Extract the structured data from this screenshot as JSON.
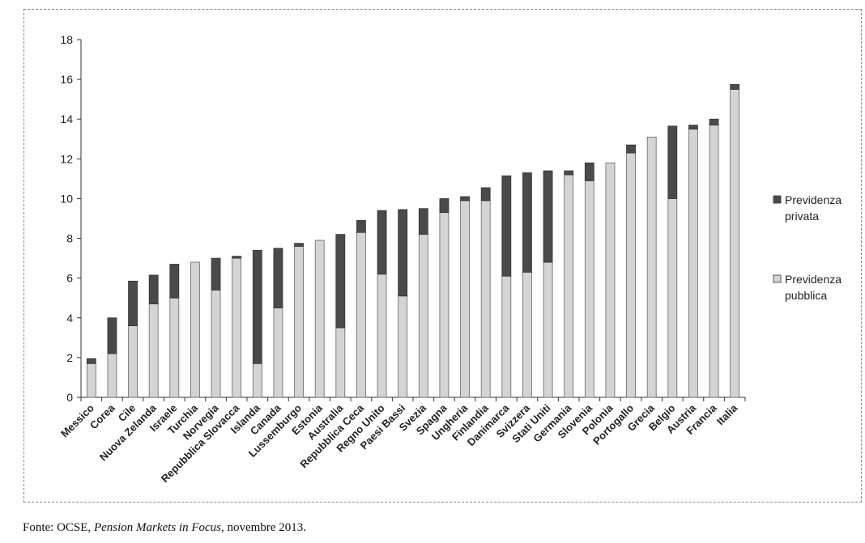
{
  "chart_data": {
    "type": "bar",
    "stacked": true,
    "categories": [
      "Messico",
      "Corea",
      "Cile",
      "Nuova Zelanda",
      "Israele",
      "Turchia",
      "Norvegia",
      "Repubblica Slovacca",
      "Islanda",
      "Canada",
      "Lussemburgo",
      "Estonia",
      "Australia",
      "Repubblica Ceca",
      "Regno Unito",
      "Paesi Bassi",
      "Svezia",
      "Spagna",
      "Ungheria",
      "Finlandia",
      "Danimarca",
      "Svizzera",
      "Stati Uniti",
      "Germania",
      "Slovenia",
      "Polonia",
      "Portogallo",
      "Grecia",
      "Belgio",
      "Austria",
      "Francia",
      "Italia"
    ],
    "series": [
      {
        "name": "Previdenza pubblica",
        "color": "#d4d4d4",
        "values": [
          1.7,
          2.2,
          3.6,
          4.7,
          5.0,
          6.8,
          5.4,
          7.0,
          1.7,
          4.5,
          7.6,
          7.9,
          3.5,
          8.3,
          6.2,
          5.1,
          8.2,
          9.3,
          9.9,
          9.9,
          6.1,
          6.3,
          6.8,
          11.2,
          10.9,
          11.8,
          12.3,
          13.1,
          10.0,
          13.5,
          13.7,
          15.5
        ]
      },
      {
        "name": "Previdenza privata",
        "color": "#4a4a4a",
        "values": [
          0.25,
          1.8,
          2.25,
          1.45,
          1.7,
          0.0,
          1.6,
          0.1,
          5.7,
          3.0,
          0.15,
          0.0,
          4.7,
          0.6,
          3.2,
          4.35,
          1.3,
          0.7,
          0.2,
          0.65,
          5.05,
          5.0,
          4.6,
          0.2,
          0.9,
          0.0,
          0.4,
          0.0,
          3.65,
          0.2,
          0.3,
          0.25
        ]
      }
    ],
    "yticks": [
      0,
      2,
      4,
      6,
      8,
      10,
      12,
      14,
      16,
      18
    ],
    "ylim": [
      0,
      18
    ],
    "legend": {
      "position": "right",
      "entries": [
        {
          "lines": [
            "Previdenza",
            "privata"
          ],
          "color": "#4a4a4a"
        },
        {
          "lines": [
            "Previdenza",
            "pubblica"
          ],
          "color": "#d4d4d4"
        }
      ]
    },
    "grid": false
  },
  "source": {
    "prefix": "Fonte: OCSE, ",
    "title": "Pension Markets in Focus",
    "suffix": ", novembre 2013."
  }
}
